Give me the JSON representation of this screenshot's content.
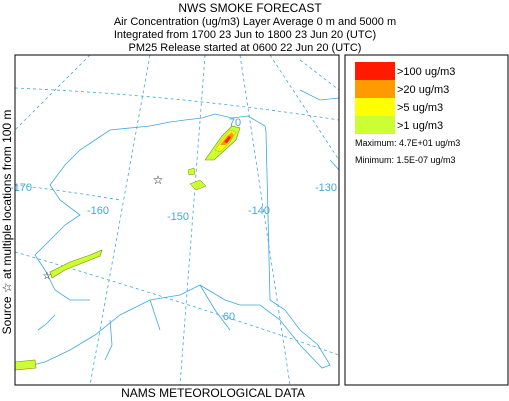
{
  "header": {
    "title": "NWS SMOKE FORECAST",
    "lines": [
      "Air Concentration (ug/m3) Layer Average    0 m and  5000 m",
      "Integrated from 1700 23 Jun to 1800 23 Jun 20 (UTC)",
      "PM25 Release started at 0600 22 Jun 20 (UTC)"
    ]
  },
  "side_label": "Source ☆ at multiple locations   from   100 m",
  "footer": "NAMS METEOROLOGICAL DATA",
  "legend": {
    "items": [
      {
        "label": ">100 ug/m3",
        "color": "#ff1a00"
      },
      {
        "label": ">20 ug/m3",
        "color": "#ff9a00"
      },
      {
        "label": ">5 ug/m3",
        "color": "#ffff00"
      },
      {
        "label": ">1 ug/m3",
        "color": "#ccff33"
      }
    ],
    "maximum": "Maximum: 4.7E+01 ug/m3",
    "minimum": "Minimum: 1.5E-07 ug/m3"
  },
  "map": {
    "graticule_labels": [
      "-170",
      "-160",
      "-150",
      "-140",
      "-130",
      "70",
      "60"
    ]
  }
}
